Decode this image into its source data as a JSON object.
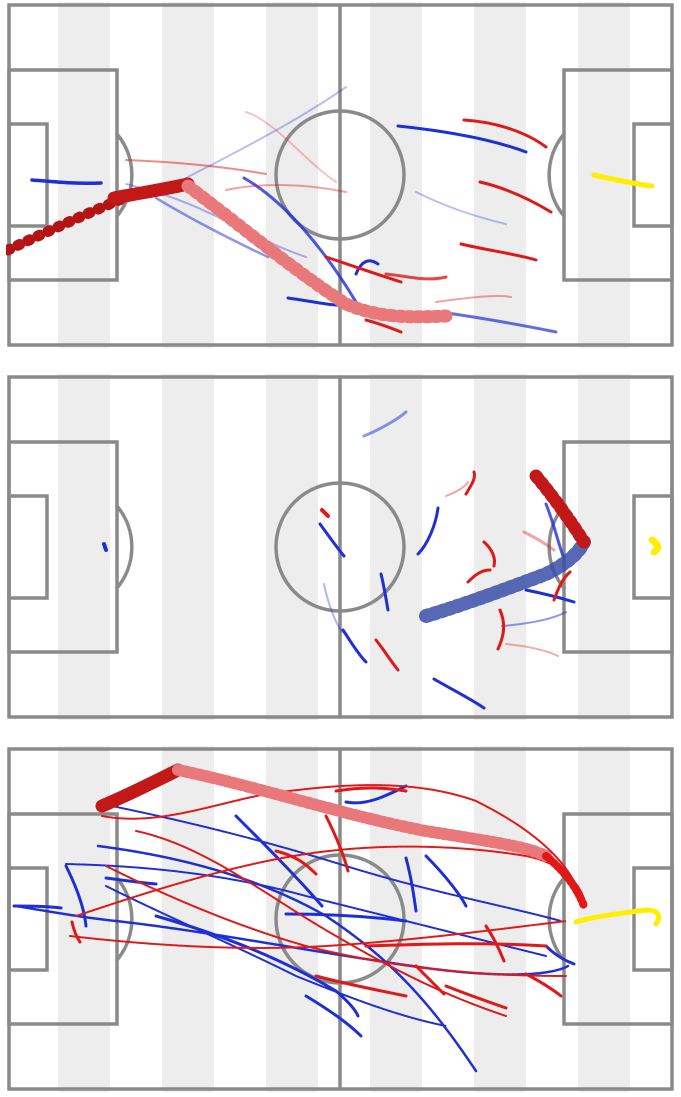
{
  "figure": {
    "panel_count": 3,
    "colors": {
      "team_red": "#e01818",
      "team_blue": "#1f2fd6",
      "goalkeeper_yellow": "#ffee00",
      "pitch_stripe_light": "#ffffff",
      "pitch_stripe_dark": "#ededed",
      "pitch_lines": "#8a8a8a"
    },
    "icons": [
      "soccer-pitch",
      "ball-trail"
    ]
  }
}
